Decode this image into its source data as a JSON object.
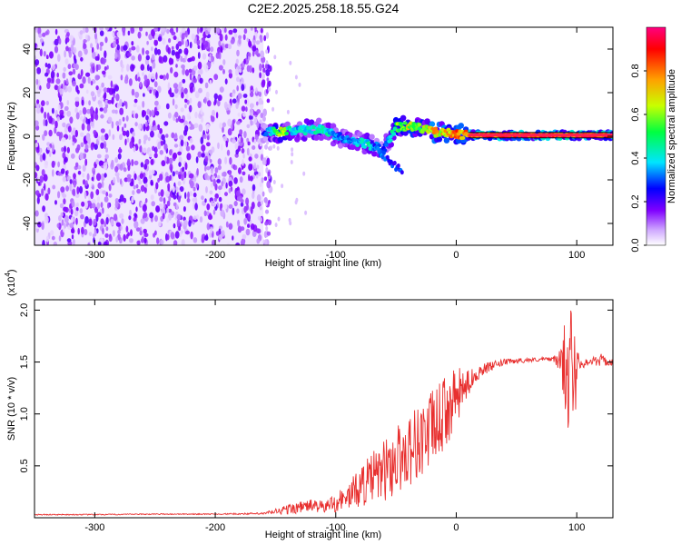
{
  "title": "C2E2.2025.258.18.55.G24",
  "chart_data": [
    {
      "type": "heatmap",
      "xlabel": "Height of straight line (km)",
      "ylabel": "Frequency (Hz)",
      "xlim": [
        -350,
        130
      ],
      "ylim": [
        -50,
        50
      ],
      "xticks": [
        -300,
        -200,
        -100,
        0,
        100
      ],
      "yticks": [
        -40,
        -20,
        0,
        20,
        40
      ],
      "colorbar": {
        "label": "Normalized spectral amplitude",
        "range": [
          0,
          1
        ],
        "ticks": [
          "0.0",
          "0.2",
          "0.4",
          "0.6",
          "0.8"
        ],
        "tick_values": [
          0.0,
          0.2,
          0.4,
          0.6,
          0.8
        ],
        "colormap": [
          "#ffffff",
          "#cfa8ff",
          "#8000ff",
          "#0000ff",
          "#00e5ff",
          "#00ff40",
          "#c8ff00",
          "#ffa000",
          "#ff0000",
          "#ff0080"
        ]
      },
      "noise_region_x": [
        -350,
        -160
      ],
      "signal_ridge": [
        {
          "x": -158,
          "f": 2,
          "amp": 0.3
        },
        {
          "x": -145,
          "f": 2,
          "amp": 0.7
        },
        {
          "x": -135,
          "f": 2.5,
          "amp": 0.4
        },
        {
          "x": -120,
          "f": 3,
          "amp": 0.45
        },
        {
          "x": -110,
          "f": 3,
          "amp": 0.5
        },
        {
          "x": -100,
          "f": 0,
          "amp": 0.35
        },
        {
          "x": -85,
          "f": -2,
          "amp": 0.4
        },
        {
          "x": -72,
          "f": -4,
          "amp": 0.45
        },
        {
          "x": -60,
          "f": -6,
          "amp": 0.3
        },
        {
          "x": -50,
          "f": 4,
          "amp": 0.6
        },
        {
          "x": -40,
          "f": 5,
          "amp": 0.7
        },
        {
          "x": -30,
          "f": 4,
          "amp": 0.6
        },
        {
          "x": -20,
          "f": 2,
          "amp": 0.8
        },
        {
          "x": -10,
          "f": 1.5,
          "amp": 0.75
        },
        {
          "x": 0,
          "f": 1,
          "amp": 0.85
        },
        {
          "x": 10,
          "f": 0.5,
          "amp": 0.9
        },
        {
          "x": 30,
          "f": 0.5,
          "amp": 0.95
        },
        {
          "x": 60,
          "f": 0.5,
          "amp": 0.95
        },
        {
          "x": 90,
          "f": 0.5,
          "amp": 0.95
        },
        {
          "x": 130,
          "f": 0.5,
          "amp": 0.95
        }
      ]
    },
    {
      "type": "line",
      "xlabel": "Height of straight line (km)",
      "ylabel": "SNR (10 * v/v)",
      "multiplier": "(x10",
      "multiplier_exp": "4",
      "multiplier_close": ")",
      "xlim": [
        -350,
        130
      ],
      "ylim": [
        0,
        2.1
      ],
      "xticks": [
        -300,
        -200,
        -100,
        0,
        100
      ],
      "yticks": [
        "0.5",
        "1.0",
        "1.5",
        "2.0"
      ],
      "ytick_values": [
        0.5,
        1.0,
        1.5,
        2.0
      ],
      "color": "#e8302f",
      "series": [
        {
          "name": "SNR",
          "x": [
            -350,
            -300,
            -250,
            -200,
            -160,
            -140,
            -120,
            -110,
            -100,
            -90,
            -80,
            -70,
            -60,
            -50,
            -40,
            -30,
            -20,
            -10,
            0,
            10,
            20,
            40,
            60,
            80,
            90,
            95,
            100,
            110,
            120,
            130
          ],
          "y": [
            0.03,
            0.03,
            0.035,
            0.035,
            0.04,
            0.08,
            0.12,
            0.1,
            0.15,
            0.2,
            0.3,
            0.38,
            0.45,
            0.55,
            0.65,
            0.75,
            0.85,
            1.0,
            1.15,
            1.3,
            1.42,
            1.5,
            1.52,
            1.53,
            1.5,
            1.55,
            1.5,
            1.5,
            1.52,
            1.49
          ],
          "noise_amplitude": [
            0.005,
            0.005,
            0.005,
            0.005,
            0.01,
            0.05,
            0.06,
            0.06,
            0.1,
            0.12,
            0.2,
            0.25,
            0.3,
            0.35,
            0.35,
            0.38,
            0.38,
            0.35,
            0.3,
            0.12,
            0.06,
            0.03,
            0.02,
            0.02,
            0.15,
            0.5,
            0.1,
            0.03,
            0.06,
            0.03
          ]
        }
      ]
    }
  ]
}
